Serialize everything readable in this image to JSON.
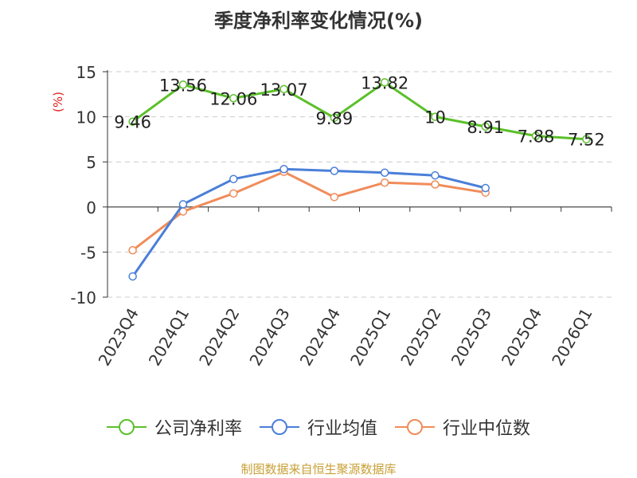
{
  "chart_data": {
    "type": "line",
    "title": "季度净利率变化情况(%)",
    "ylabel": "(%)",
    "ylim": [
      -10,
      15
    ],
    "yticks": [
      15,
      10,
      5,
      0,
      -5,
      -10
    ],
    "grid": true,
    "legend_position": "bottom",
    "categories": [
      "2023Q4",
      "2024Q1",
      "2024Q2",
      "2024Q3",
      "2024Q4",
      "2025Q1",
      "2025Q2",
      "2025Q3",
      "2025Q4",
      "2026Q1"
    ],
    "series": [
      {
        "name": "公司净利率",
        "color": "#5bc02a",
        "values": [
          9.46,
          13.56,
          12.06,
          13.07,
          9.89,
          13.82,
          10,
          8.91,
          7.88,
          7.52
        ],
        "labels": [
          "9.46",
          "13.56",
          "12.06",
          "13.07",
          "9.89",
          "13.82",
          "10",
          "8.91",
          "7.88",
          "7.52"
        ],
        "show_labels": true
      },
      {
        "name": "行业均值",
        "color": "#4a7fd8",
        "values": [
          -7.7,
          0.3,
          3.1,
          4.2,
          4.0,
          3.8,
          3.5,
          2.1,
          null,
          null
        ],
        "show_labels": false
      },
      {
        "name": "行业中位数",
        "color": "#f08c5a",
        "values": [
          -4.8,
          -0.5,
          1.5,
          3.9,
          1.1,
          2.7,
          2.5,
          1.6,
          null,
          null
        ],
        "show_labels": false
      }
    ]
  },
  "source": "制图数据来自恒生聚源数据库"
}
